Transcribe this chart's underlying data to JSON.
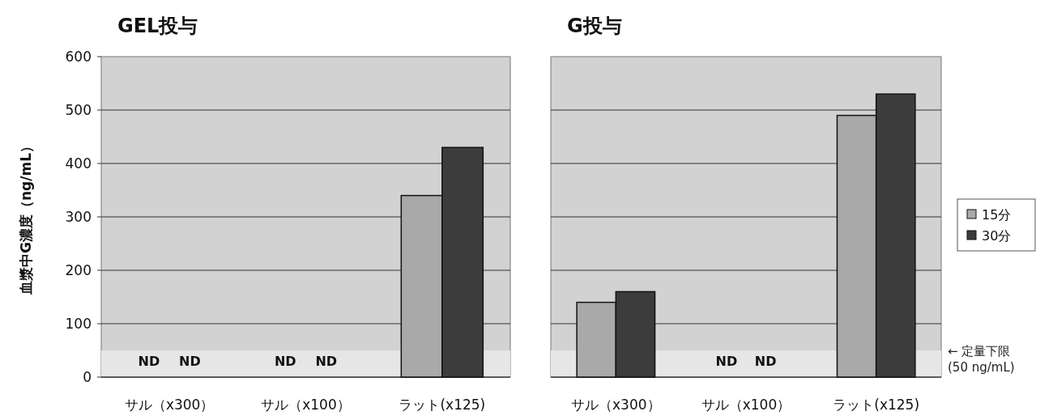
{
  "chart_data": [
    {
      "type": "bar",
      "title": "GEL投与",
      "ylabel": "血漿中G濃度（ng/mL）",
      "categories": [
        "サル（x300）",
        "サル（x100）",
        "ラット(x125)"
      ],
      "series": [
        {
          "color": "#a9a9a9",
          "values": [
            null,
            null,
            340
          ],
          "value_labels": [
            "ND",
            "ND",
            null
          ]
        },
        {
          "color": "#3c3c3c",
          "values": [
            null,
            null,
            430
          ],
          "value_labels": [
            "ND",
            "ND",
            null
          ]
        }
      ],
      "ylim": [
        0,
        600
      ],
      "yticks": [
        0,
        100,
        200,
        300,
        400,
        500,
        600
      ],
      "grid": "y",
      "bands": [
        {
          "axis": "y",
          "from": 0,
          "to": 50,
          "color": "#e6e6e6"
        }
      ]
    },
    {
      "type": "bar",
      "title": "G投与",
      "categories": [
        "サル（x300）",
        "サル（x100）",
        "ラット(x125)"
      ],
      "series": [
        {
          "name": "15分",
          "color": "#a9a9a9",
          "values": [
            140,
            null,
            490
          ],
          "value_labels": [
            null,
            "ND",
            null
          ]
        },
        {
          "name": "30分",
          "color": "#3c3c3c",
          "values": [
            160,
            null,
            530
          ],
          "value_labels": [
            null,
            "ND",
            null
          ]
        }
      ],
      "ylim": [
        0,
        600
      ],
      "yticks": [
        0,
        100,
        200,
        300,
        400,
        500,
        600
      ],
      "grid": "y",
      "legend": "right",
      "tick_labels": "x",
      "bands": [
        {
          "axis": "y",
          "from": 0,
          "to": 50,
          "color": "#e6e6e6",
          "label": "← 定量下限\n(50 ng/mL)"
        }
      ]
    }
  ]
}
